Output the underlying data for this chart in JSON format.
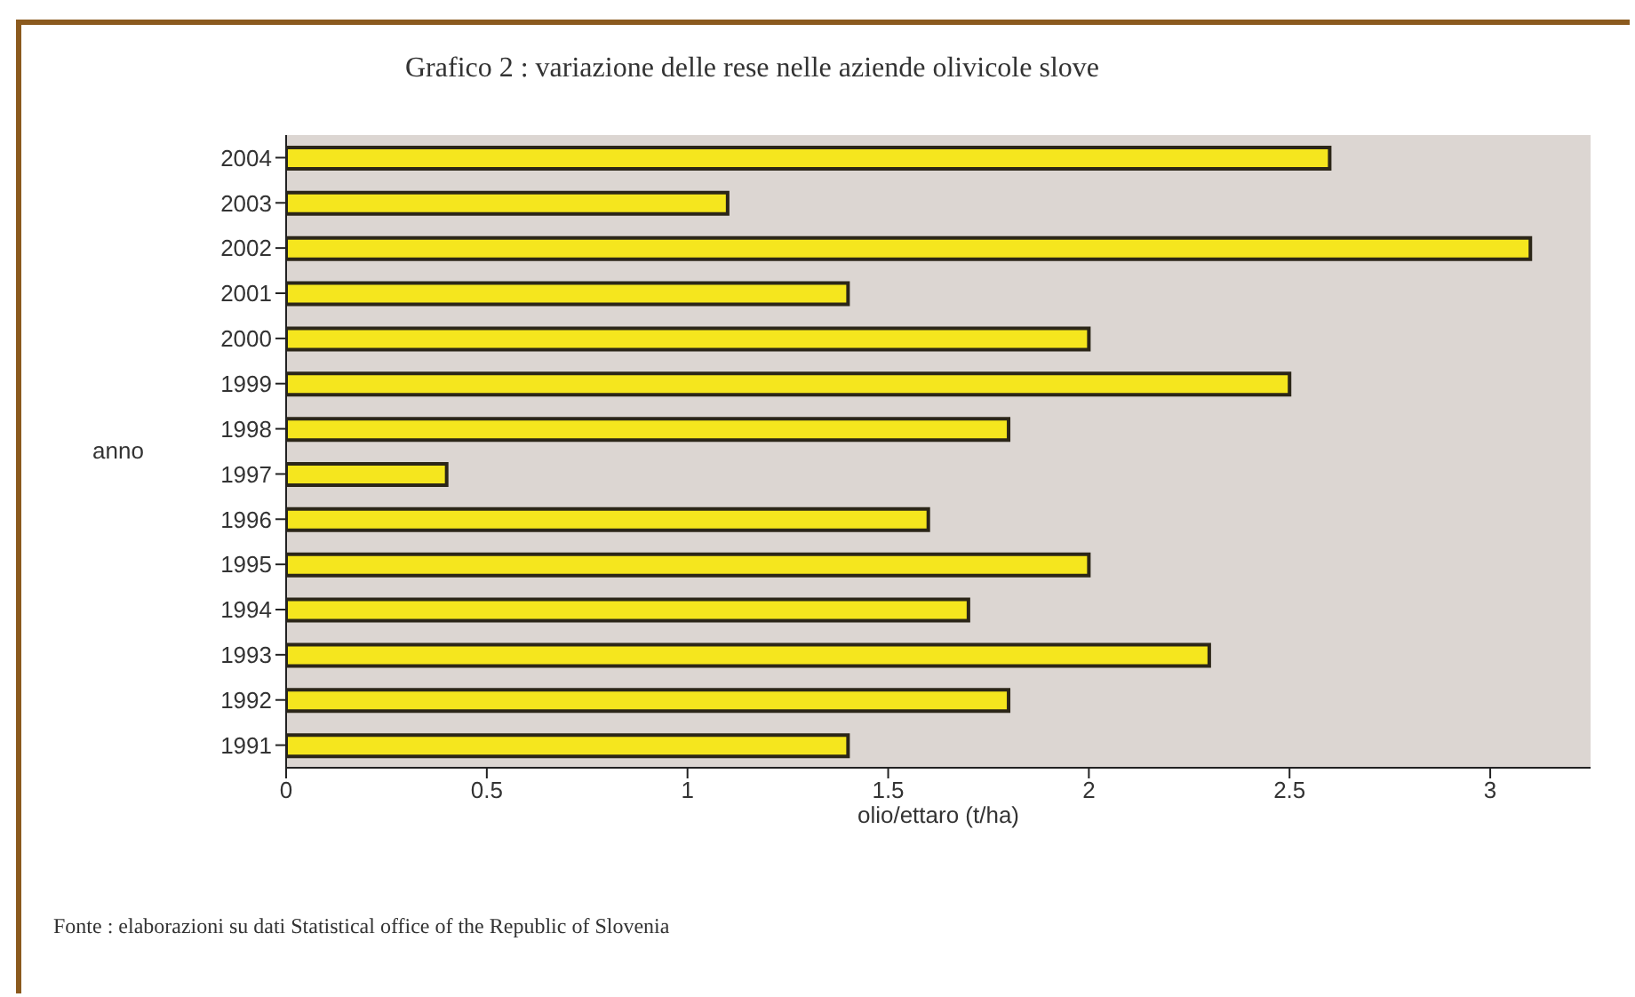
{
  "chart_data": {
    "type": "bar",
    "orientation": "horizontal",
    "title": "Grafico 2 : variazione delle rese nelle aziende olivicole slove",
    "categories": [
      "2004",
      "2003",
      "2002",
      "2001",
      "2000",
      "1999",
      "1998",
      "1997",
      "1996",
      "1995",
      "1994",
      "1993",
      "1992",
      "1991"
    ],
    "values": [
      2.6,
      1.1,
      3.1,
      1.4,
      2.0,
      2.5,
      1.8,
      0.4,
      1.6,
      2.0,
      1.7,
      2.3,
      1.8,
      1.4
    ],
    "color": "#f5e61e",
    "xlim": [
      0,
      3.25
    ],
    "xticks": [
      0,
      0.5,
      1,
      1.5,
      2,
      2.5,
      3
    ],
    "xlabel": "olio/ettaro (t/ha)",
    "ylabel": "anno",
    "annotations": [
      "Fonte : elaborazioni su dati Statistical office of the Republic of Slovenia"
    ]
  }
}
